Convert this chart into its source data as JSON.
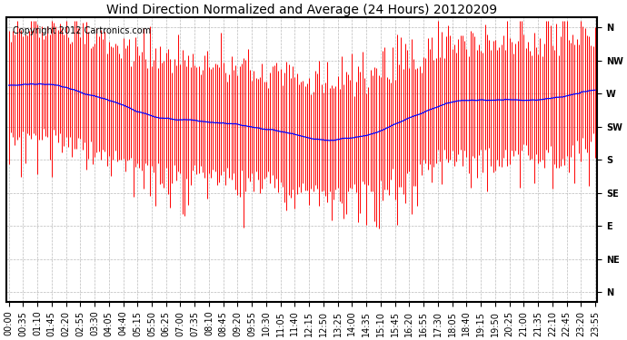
{
  "title": "Wind Direction Normalized and Average (24 Hours) 20120209",
  "copyright": "Copyright 2012 Cartronics.com",
  "ytick_labels": [
    "N",
    "NW",
    "W",
    "SW",
    "S",
    "SE",
    "E",
    "NE",
    "N"
  ],
  "ytick_values": [
    8,
    7,
    6,
    5,
    4,
    3,
    2,
    1,
    0
  ],
  "ylim": [
    -0.3,
    8.3
  ],
  "background_color": "#ffffff",
  "plot_bg_color": "#ffffff",
  "grid_color": "#aaaaaa",
  "red_color": "#ff0000",
  "blue_color": "#0000ff",
  "title_fontsize": 10,
  "copyright_fontsize": 7,
  "tick_fontsize": 7,
  "num_points": 288,
  "tick_step": 7
}
